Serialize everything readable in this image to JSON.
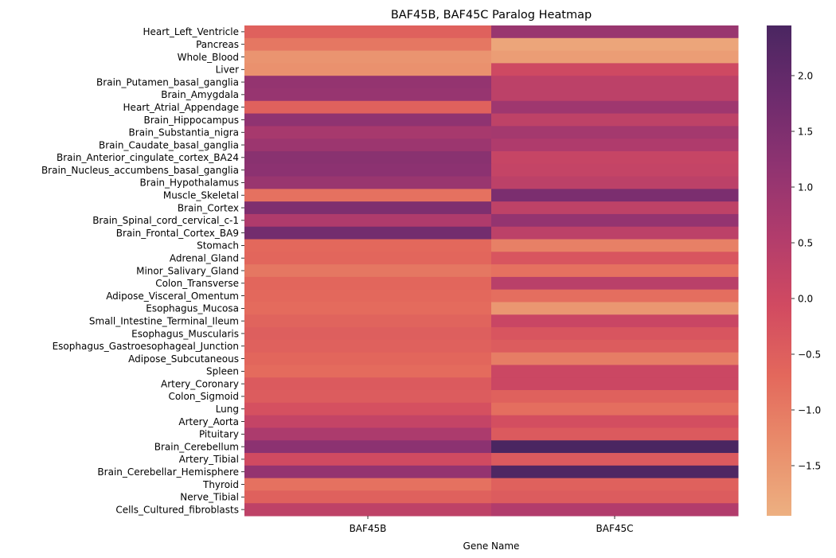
{
  "chart_data": {
    "type": "heatmap",
    "title": "BAF45B, BAF45C Paralog Heatmap",
    "xlabel": "Gene Name",
    "ylabel": "",
    "columns": [
      "BAF45B",
      "BAF45C"
    ],
    "rows": [
      "Heart_Left_Ventricle",
      "Pancreas",
      "Whole_Blood",
      "Liver",
      "Brain_Putamen_basal_ganglia",
      "Brain_Amygdala",
      "Heart_Atrial_Appendage",
      "Brain_Hippocampus",
      "Brain_Substantia_nigra",
      "Brain_Caudate_basal_ganglia",
      "Brain_Anterior_cingulate_cortex_BA24",
      "Brain_Nucleus_accumbens_basal_ganglia",
      "Brain_Hypothalamus",
      "Muscle_Skeletal",
      "Brain_Cortex",
      "Brain_Spinal_cord_cervical_c-1",
      "Brain_Frontal_Cortex_BA9",
      "Stomach",
      "Adrenal_Gland",
      "Minor_Salivary_Gland",
      "Colon_Transverse",
      "Adipose_Visceral_Omentum",
      "Esophagus_Mucosa",
      "Small_Intestine_Terminal_Ileum",
      "Esophagus_Muscularis",
      "Esophagus_Gastroesophageal_Junction",
      "Adipose_Subcutaneous",
      "Spleen",
      "Artery_Coronary",
      "Colon_Sigmoid",
      "Lung",
      "Artery_Aorta",
      "Pituitary",
      "Brain_Cerebellum",
      "Artery_Tibial",
      "Brain_Cerebellar_Hemisphere",
      "Thyroid",
      "Nerve_Tibial",
      "Cells_Cultured_fibroblasts"
    ],
    "values": [
      [
        -0.55,
        1.0
      ],
      [
        -0.95,
        -1.75
      ],
      [
        -1.45,
        -1.6
      ],
      [
        -1.4,
        0.0
      ],
      [
        1.1,
        0.35
      ],
      [
        1.05,
        0.35
      ],
      [
        -0.55,
        0.9
      ],
      [
        1.2,
        0.3
      ],
      [
        0.75,
        0.8
      ],
      [
        0.95,
        0.6
      ],
      [
        1.3,
        0.15
      ],
      [
        1.25,
        0.2
      ],
      [
        1.0,
        0.35
      ],
      [
        -0.85,
        1.55
      ],
      [
        1.5,
        0.3
      ],
      [
        0.6,
        1.1
      ],
      [
        1.7,
        0.35
      ],
      [
        -0.7,
        -1.1
      ],
      [
        -0.65,
        -0.3
      ],
      [
        -0.95,
        -0.85
      ],
      [
        -0.65,
        0.4
      ],
      [
        -0.7,
        -0.8
      ],
      [
        -0.75,
        -1.5
      ],
      [
        -0.6,
        0.1
      ],
      [
        -0.5,
        -0.3
      ],
      [
        -0.55,
        -0.45
      ],
      [
        -0.65,
        -1.05
      ],
      [
        -0.75,
        0.05
      ],
      [
        -0.4,
        0.05
      ],
      [
        -0.45,
        -0.55
      ],
      [
        -0.2,
        -0.8
      ],
      [
        0.2,
        -0.15
      ],
      [
        0.65,
        -0.4
      ],
      [
        1.25,
        2.45
      ],
      [
        -0.05,
        -0.4
      ],
      [
        1.1,
        2.35
      ],
      [
        -0.85,
        -0.55
      ],
      [
        -0.55,
        -0.45
      ],
      [
        0.3,
        0.55
      ]
    ],
    "colorbar": {
      "min": -1.95,
      "max": 2.45,
      "ticks": [
        -1.5,
        -1.0,
        -0.5,
        0.0,
        0.5,
        1.0,
        1.5,
        2.0
      ],
      "tick_labels": [
        "−1.5",
        "−1.0",
        "−0.5",
        "0.0",
        "0.5",
        "1.0",
        "1.5",
        "2.0"
      ],
      "colormap": "flare",
      "colors": [
        "#edb081",
        "#e98d6b",
        "#e3685c",
        "#d14a61",
        "#b13c6c",
        "#8f3371",
        "#6c2b6d",
        "#4a2661"
      ]
    },
    "legend": "colorbar-right",
    "grid": false
  }
}
